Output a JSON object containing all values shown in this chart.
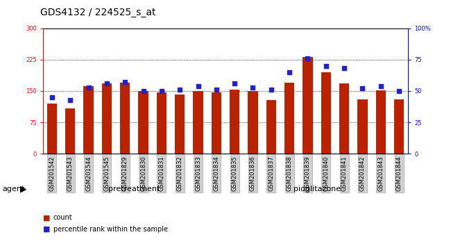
{
  "title": "GDS4132 / 224525_s_at",
  "categories": [
    "GSM201542",
    "GSM201543",
    "GSM201544",
    "GSM201545",
    "GSM201829",
    "GSM201830",
    "GSM201831",
    "GSM201832",
    "GSM201833",
    "GSM201834",
    "GSM201835",
    "GSM201836",
    "GSM201837",
    "GSM201838",
    "GSM201839",
    "GSM201840",
    "GSM201841",
    "GSM201842",
    "GSM201843",
    "GSM201844"
  ],
  "counts": [
    120,
    108,
    162,
    168,
    170,
    150,
    147,
    142,
    150,
    147,
    154,
    150,
    128,
    170,
    232,
    195,
    168,
    130,
    152,
    130
  ],
  "percentiles": [
    45,
    43,
    53,
    56,
    57,
    50,
    50,
    51,
    54,
    51,
    56,
    53,
    51,
    65,
    76,
    70,
    68,
    52,
    54,
    50
  ],
  "left_ylim": [
    0,
    300
  ],
  "right_ylim": [
    0,
    100
  ],
  "left_yticks": [
    0,
    75,
    150,
    225,
    300
  ],
  "right_yticks": [
    0,
    25,
    50,
    75,
    100
  ],
  "right_yticklabels": [
    "0",
    "25",
    "50",
    "75",
    "100%"
  ],
  "bar_color": "#bb2200",
  "dot_color": "#2222cc",
  "n_pretreatment": 10,
  "n_pioglitazone": 10,
  "pretreatment_color": "#aaee99",
  "pioglitazone_color": "#55ee44",
  "agent_label": "agent",
  "pretreatment_label": "pretreatment",
  "pioglitazone_label": "pioglitazone",
  "legend_count_label": "count",
  "legend_pct_label": "percentile rank within the sample",
  "title_fontsize": 10,
  "tick_fontsize": 6,
  "label_fontsize": 8,
  "legend_fontsize": 7
}
